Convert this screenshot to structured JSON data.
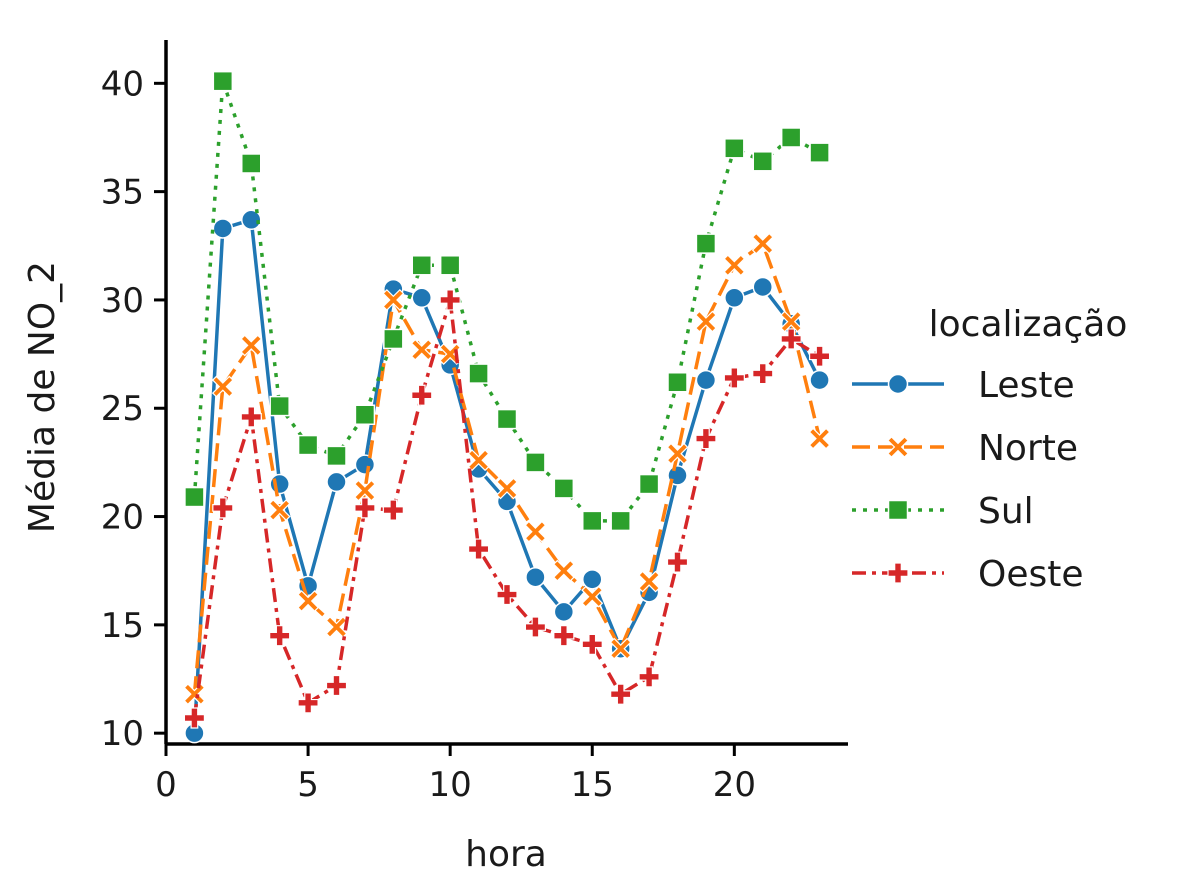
{
  "chart_data": {
    "type": "line",
    "title": "",
    "xlabel": "hora",
    "ylabel": "Média de NO_2",
    "xlim": [
      0,
      24
    ],
    "ylim": [
      9.5,
      42
    ],
    "xticks": [
      0,
      5,
      10,
      15,
      20
    ],
    "yticks": [
      10,
      15,
      20,
      25,
      30,
      35,
      40
    ],
    "grid": false,
    "legend": {
      "title": "localização",
      "position": "right"
    },
    "x": [
      1,
      2,
      3,
      4,
      5,
      6,
      7,
      8,
      9,
      10,
      11,
      12,
      13,
      14,
      15,
      16,
      17,
      18,
      19,
      20,
      21,
      22,
      23
    ],
    "series": [
      {
        "name": "Leste",
        "color": "#1f77b4",
        "dash": "solid",
        "marker": "circle",
        "values": [
          10.0,
          33.3,
          33.7,
          21.5,
          16.8,
          21.6,
          22.4,
          30.5,
          30.1,
          27.0,
          22.2,
          20.7,
          17.2,
          15.6,
          17.1,
          13.9,
          16.5,
          21.9,
          26.3,
          30.1,
          30.6,
          28.9,
          26.3
        ]
      },
      {
        "name": "Norte",
        "color": "#ff7f0e",
        "dash": "dashed",
        "marker": "x",
        "values": [
          11.8,
          26.0,
          27.9,
          20.3,
          16.1,
          14.9,
          21.2,
          30.0,
          27.7,
          27.5,
          22.6,
          21.3,
          19.3,
          17.5,
          16.3,
          13.9,
          17.0,
          22.9,
          29.0,
          31.6,
          32.6,
          29.0,
          23.6
        ]
      },
      {
        "name": "Sul",
        "color": "#2ca02c",
        "dash": "dotted",
        "marker": "square",
        "values": [
          20.9,
          40.1,
          36.3,
          25.1,
          23.3,
          22.8,
          24.7,
          28.2,
          31.6,
          31.6,
          26.6,
          24.5,
          22.5,
          21.3,
          19.8,
          19.8,
          21.5,
          26.2,
          32.6,
          37.0,
          36.4,
          37.5,
          36.8
        ]
      },
      {
        "name": "Oeste",
        "color": "#d62728",
        "dash": "dashdot",
        "marker": "plus",
        "values": [
          10.7,
          20.4,
          24.6,
          14.5,
          11.4,
          12.2,
          20.4,
          20.3,
          25.6,
          30.0,
          18.5,
          16.4,
          14.9,
          14.5,
          14.1,
          11.8,
          12.6,
          17.9,
          23.6,
          26.4,
          26.6,
          28.2,
          27.4
        ]
      }
    ]
  }
}
